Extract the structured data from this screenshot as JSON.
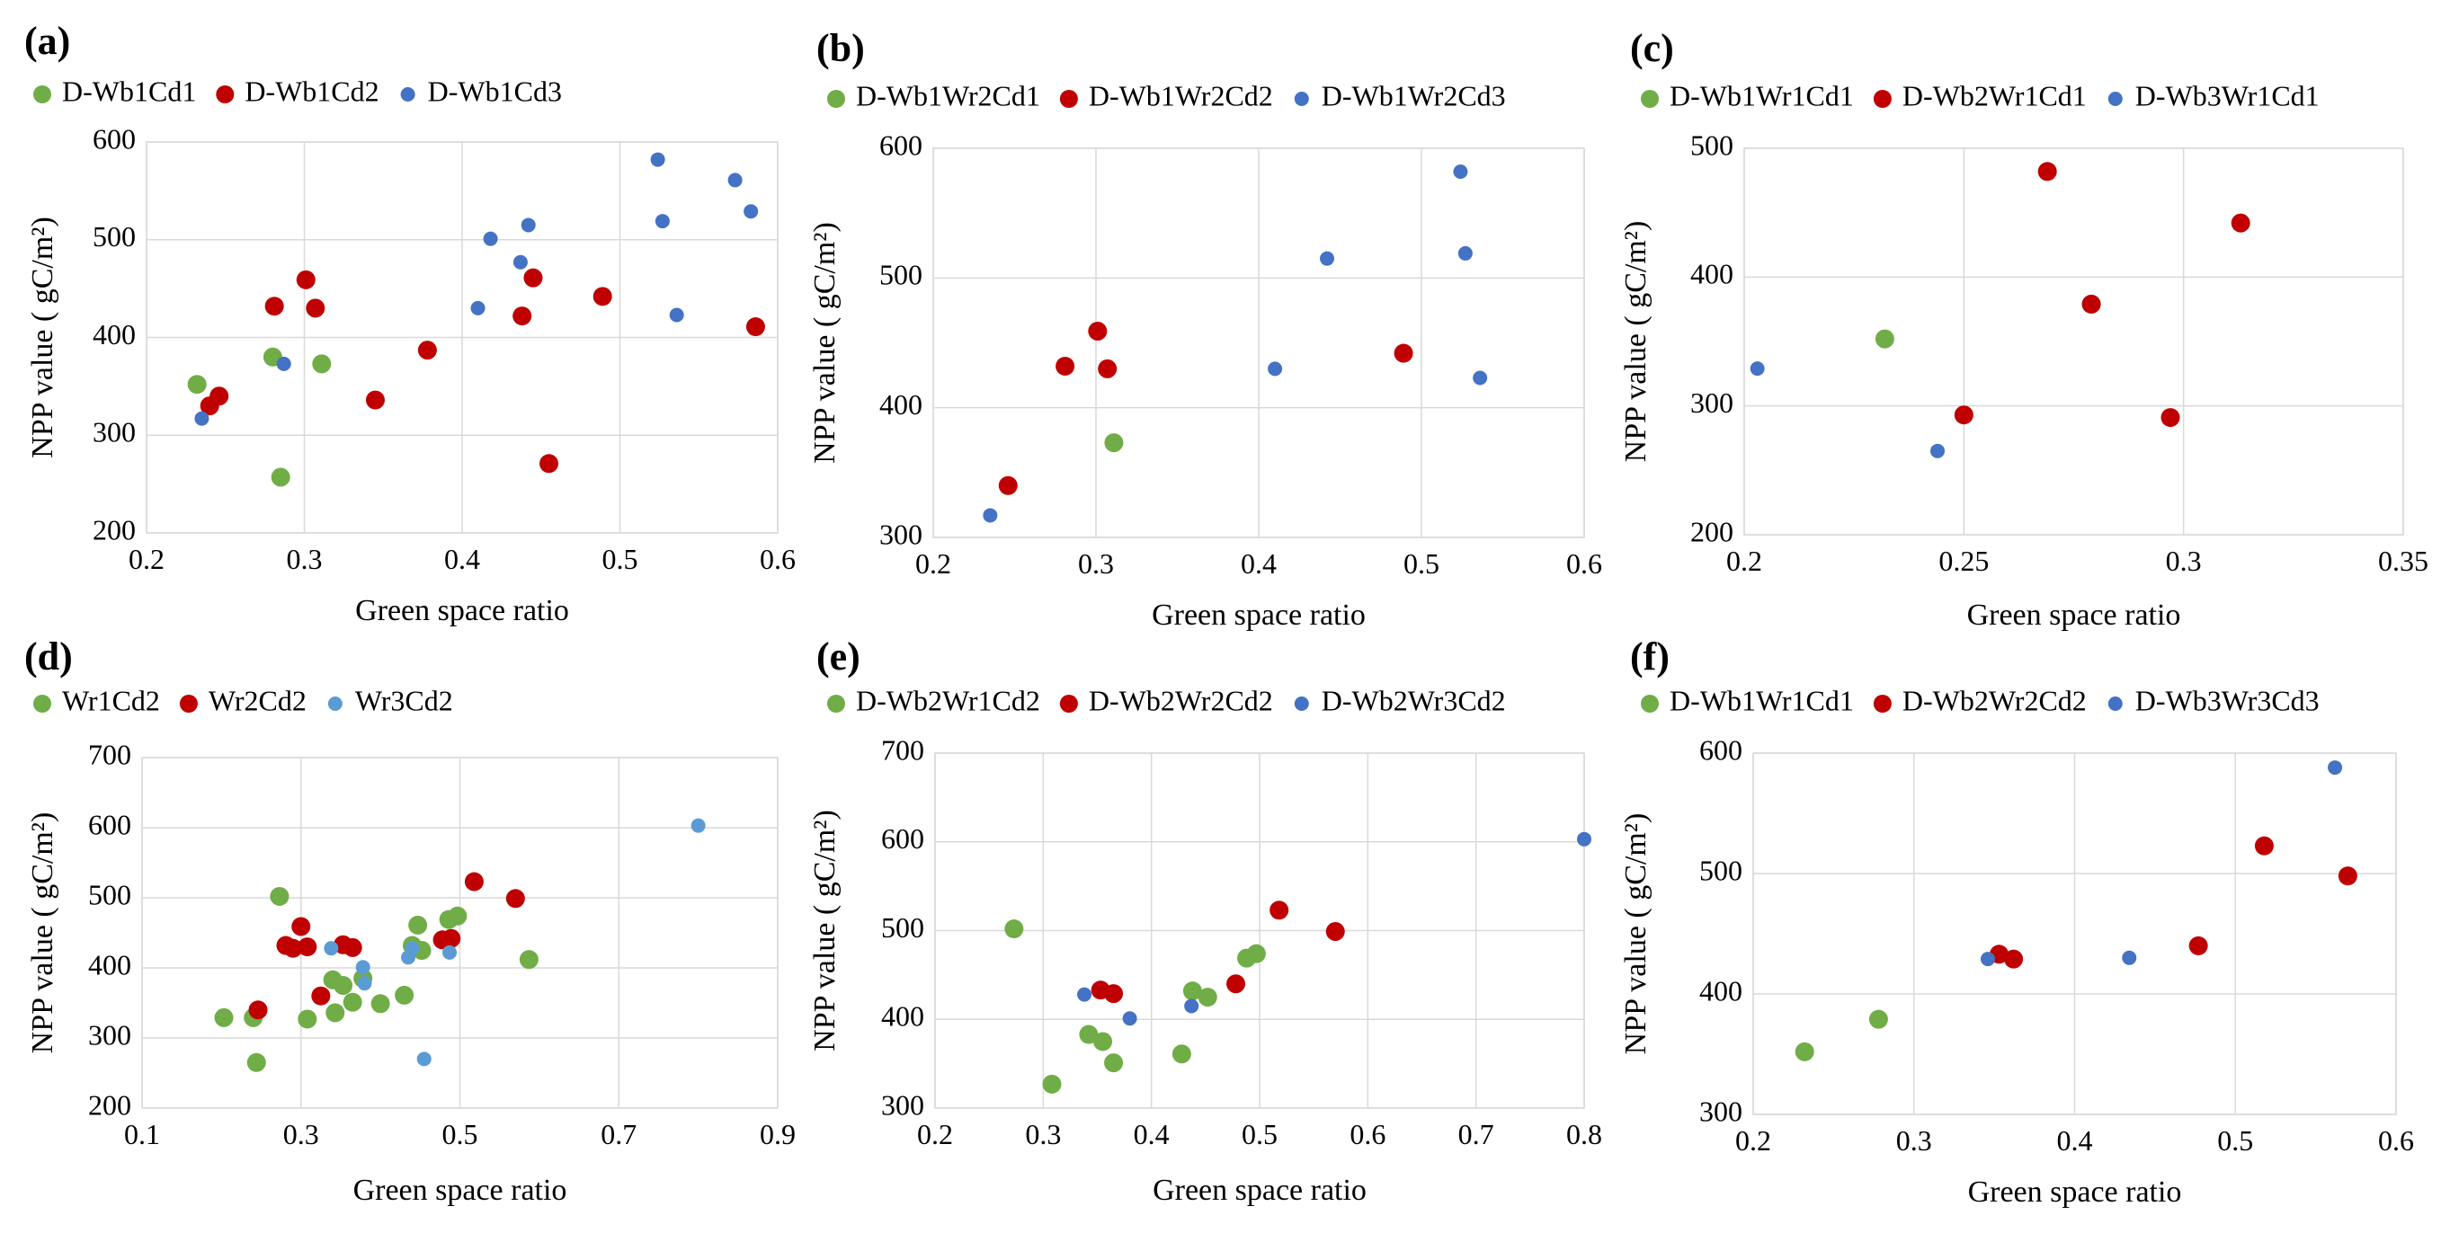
{
  "chart_data": [
    {
      "panel": "(a)",
      "type": "scatter",
      "xlabel": "Green space ratio",
      "ylabel": "NPP value ( gC/m²)",
      "xlim": [
        0.2,
        0.6
      ],
      "ylim": [
        200,
        600
      ],
      "xticks": [
        "0.2",
        "0.3",
        "0.4",
        "0.5",
        "0.6"
      ],
      "yticks": [
        "200",
        "300",
        "400",
        "500",
        "600"
      ],
      "legend_position": "top",
      "grid": true,
      "series": [
        {
          "name": "D-Wb1Cd1",
          "color": "#70ad47",
          "marker": "large",
          "points": [
            [
              0.232,
              352
            ],
            [
              0.28,
              380
            ],
            [
              0.285,
              257
            ],
            [
              0.311,
              373
            ]
          ]
        },
        {
          "name": "D-Wb1Cd2",
          "color": "#c00000",
          "marker": "large",
          "points": [
            [
              0.24,
              330
            ],
            [
              0.246,
              340
            ],
            [
              0.281,
              432
            ],
            [
              0.301,
              459
            ],
            [
              0.307,
              430
            ],
            [
              0.345,
              336
            ],
            [
              0.378,
              387
            ],
            [
              0.438,
              422
            ],
            [
              0.445,
              461
            ],
            [
              0.455,
              271
            ],
            [
              0.489,
              442
            ],
            [
              0.586,
              411
            ]
          ]
        },
        {
          "name": "D-Wb1Cd3",
          "color": "#4472c4",
          "marker": "small",
          "points": [
            [
              0.235,
              317
            ],
            [
              0.287,
              373
            ],
            [
              0.41,
              430
            ],
            [
              0.418,
              501
            ],
            [
              0.437,
              477
            ],
            [
              0.442,
              515
            ],
            [
              0.524,
              582
            ],
            [
              0.527,
              519
            ],
            [
              0.536,
              423
            ],
            [
              0.573,
              561
            ],
            [
              0.583,
              529
            ]
          ]
        }
      ]
    },
    {
      "panel": "(b)",
      "type": "scatter",
      "xlabel": "Green space ratio",
      "ylabel": "NPP value ( gC/m²)",
      "xlim": [
        0.2,
        0.6
      ],
      "ylim": [
        300,
        600
      ],
      "xticks": [
        "0.2",
        "0.3",
        "0.4",
        "0.5",
        "0.6"
      ],
      "yticks": [
        "300",
        "400",
        "500",
        "600"
      ],
      "legend_position": "top",
      "grid": true,
      "series": [
        {
          "name": "D-Wb1Wr2Cd1",
          "color": "#70ad47",
          "marker": "large",
          "points": [
            [
              0.311,
              373
            ]
          ]
        },
        {
          "name": "D-Wb1Wr2Cd2",
          "color": "#c00000",
          "marker": "large",
          "points": [
            [
              0.246,
              340
            ],
            [
              0.281,
              432
            ],
            [
              0.301,
              459
            ],
            [
              0.307,
              430
            ],
            [
              0.489,
              442
            ]
          ]
        },
        {
          "name": "D-Wb1Wr2Cd3",
          "color": "#4472c4",
          "marker": "small",
          "points": [
            [
              0.235,
              317
            ],
            [
              0.41,
              430
            ],
            [
              0.442,
              515
            ],
            [
              0.524,
              582
            ],
            [
              0.527,
              519
            ],
            [
              0.536,
              423
            ]
          ]
        }
      ]
    },
    {
      "panel": "(c)",
      "type": "scatter",
      "xlabel": "Green space ratio",
      "ylabel": "NPP value ( gC/m²)",
      "xlim": [
        0.2,
        0.35
      ],
      "ylim": [
        200,
        500
      ],
      "xticks": [
        "0.2",
        "0.25",
        "0.3",
        "0.35"
      ],
      "yticks": [
        "200",
        "300",
        "400",
        "500"
      ],
      "legend_position": "top",
      "grid": true,
      "series": [
        {
          "name": "D-Wb1Wr1Cd1",
          "color": "#70ad47",
          "marker": "large",
          "points": [
            [
              0.232,
              352
            ],
            [
              0.279,
              379
            ]
          ]
        },
        {
          "name": "D-Wb2Wr1Cd1",
          "color": "#c00000",
          "marker": "large",
          "points": [
            [
              0.25,
              293
            ],
            [
              0.269,
              482
            ],
            [
              0.279,
              379
            ],
            [
              0.297,
              291
            ],
            [
              0.313,
              442
            ]
          ]
        },
        {
          "name": "D-Wb3Wr1Cd1",
          "color": "#4472c4",
          "marker": "small",
          "points": [
            [
              0.203,
              329
            ],
            [
              0.244,
              265
            ]
          ]
        }
      ]
    },
    {
      "panel": "(d)",
      "type": "scatter",
      "xlabel": "Green space ratio",
      "ylabel": "NPP value ( gC/m²)",
      "xlim": [
        0.1,
        0.9
      ],
      "ylim": [
        200,
        700
      ],
      "xticks": [
        "0.1",
        "0.3",
        "0.5",
        "0.7",
        "0.9"
      ],
      "yticks": [
        "200",
        "300",
        "400",
        "500",
        "600",
        "700"
      ],
      "legend_position": "top",
      "grid": true,
      "series": [
        {
          "name": "Wr1Cd2",
          "color": "#70ad47",
          "marker": "large",
          "points": [
            [
              0.203,
              329
            ],
            [
              0.24,
              329
            ],
            [
              0.244,
              265
            ],
            [
              0.273,
              502
            ],
            [
              0.308,
              327
            ],
            [
              0.34,
              383
            ],
            [
              0.343,
              336
            ],
            [
              0.353,
              375
            ],
            [
              0.365,
              351
            ],
            [
              0.378,
              385
            ],
            [
              0.4,
              349
            ],
            [
              0.43,
              361
            ],
            [
              0.44,
              432
            ],
            [
              0.447,
              461
            ],
            [
              0.452,
              425
            ],
            [
              0.486,
              469
            ],
            [
              0.497,
              474
            ],
            [
              0.587,
              412
            ]
          ]
        },
        {
          "name": "Wr2Cd2",
          "color": "#c00000",
          "marker": "large",
          "points": [
            [
              0.246,
              340
            ],
            [
              0.281,
              432
            ],
            [
              0.29,
              428
            ],
            [
              0.3,
              459
            ],
            [
              0.308,
              430
            ],
            [
              0.325,
              360
            ],
            [
              0.353,
              433
            ],
            [
              0.365,
              429
            ],
            [
              0.478,
              440
            ],
            [
              0.489,
              442
            ],
            [
              0.518,
              523
            ],
            [
              0.57,
              499
            ]
          ]
        },
        {
          "name": "Wr3Cd2",
          "color": "#5b9bd5",
          "marker": "small",
          "points": [
            [
              0.338,
              428
            ],
            [
              0.378,
              401
            ],
            [
              0.38,
              378
            ],
            [
              0.435,
              415
            ],
            [
              0.44,
              428
            ],
            [
              0.455,
              270
            ],
            [
              0.487,
              422
            ],
            [
              0.8,
              603
            ]
          ]
        }
      ]
    },
    {
      "panel": "(e)",
      "type": "scatter",
      "xlabel": "Green space ratio",
      "ylabel": "NPP value ( gC/m²)",
      "xlim": [
        0.2,
        0.8
      ],
      "ylim": [
        300,
        700
      ],
      "xticks": [
        "0.2",
        "0.3",
        "0.4",
        "0.5",
        "0.6",
        "0.7",
        "0.8"
      ],
      "yticks": [
        "300",
        "400",
        "500",
        "600",
        "700"
      ],
      "legend_position": "top",
      "grid": true,
      "series": [
        {
          "name": "D-Wb2Wr1Cd2",
          "color": "#70ad47",
          "marker": "large",
          "points": [
            [
              0.273,
              502
            ],
            [
              0.308,
              327
            ],
            [
              0.342,
              383
            ],
            [
              0.355,
              375
            ],
            [
              0.365,
              351
            ],
            [
              0.428,
              361
            ],
            [
              0.438,
              432
            ],
            [
              0.452,
              425
            ],
            [
              0.488,
              469
            ],
            [
              0.497,
              474
            ]
          ]
        },
        {
          "name": "D-Wb2Wr2Cd2",
          "color": "#c00000",
          "marker": "large",
          "points": [
            [
              0.353,
              433
            ],
            [
              0.365,
              429
            ],
            [
              0.478,
              440
            ],
            [
              0.518,
              523
            ],
            [
              0.57,
              499
            ]
          ]
        },
        {
          "name": "D-Wb2Wr3Cd2",
          "color": "#4472c4",
          "marker": "small",
          "points": [
            [
              0.338,
              428
            ],
            [
              0.38,
              401
            ],
            [
              0.437,
              415
            ],
            [
              0.8,
              603
            ]
          ]
        }
      ]
    },
    {
      "panel": "(f)",
      "type": "scatter",
      "xlabel": "Green space ratio",
      "ylabel": "NPP value ( gC/m²)",
      "xlim": [
        0.2,
        0.6
      ],
      "ylim": [
        300,
        600
      ],
      "xticks": [
        "0.2",
        "0.3",
        "0.4",
        "0.5",
        "0.6"
      ],
      "yticks": [
        "300",
        "400",
        "500",
        "600"
      ],
      "legend_position": "top",
      "grid": true,
      "series": [
        {
          "name": "D-Wb1Wr1Cd1",
          "color": "#70ad47",
          "marker": "large",
          "points": [
            [
              0.232,
              352
            ],
            [
              0.278,
              379
            ]
          ]
        },
        {
          "name": "D-Wb2Wr2Cd2",
          "color": "#c00000",
          "marker": "large",
          "points": [
            [
              0.353,
              433
            ],
            [
              0.362,
              429
            ],
            [
              0.477,
              440
            ],
            [
              0.518,
              523
            ],
            [
              0.57,
              498
            ]
          ]
        },
        {
          "name": "D-Wb3Wr3Cd3",
          "color": "#4472c4",
          "marker": "small",
          "points": [
            [
              0.346,
              429
            ],
            [
              0.434,
              430
            ],
            [
              0.562,
              588
            ]
          ]
        }
      ]
    }
  ]
}
